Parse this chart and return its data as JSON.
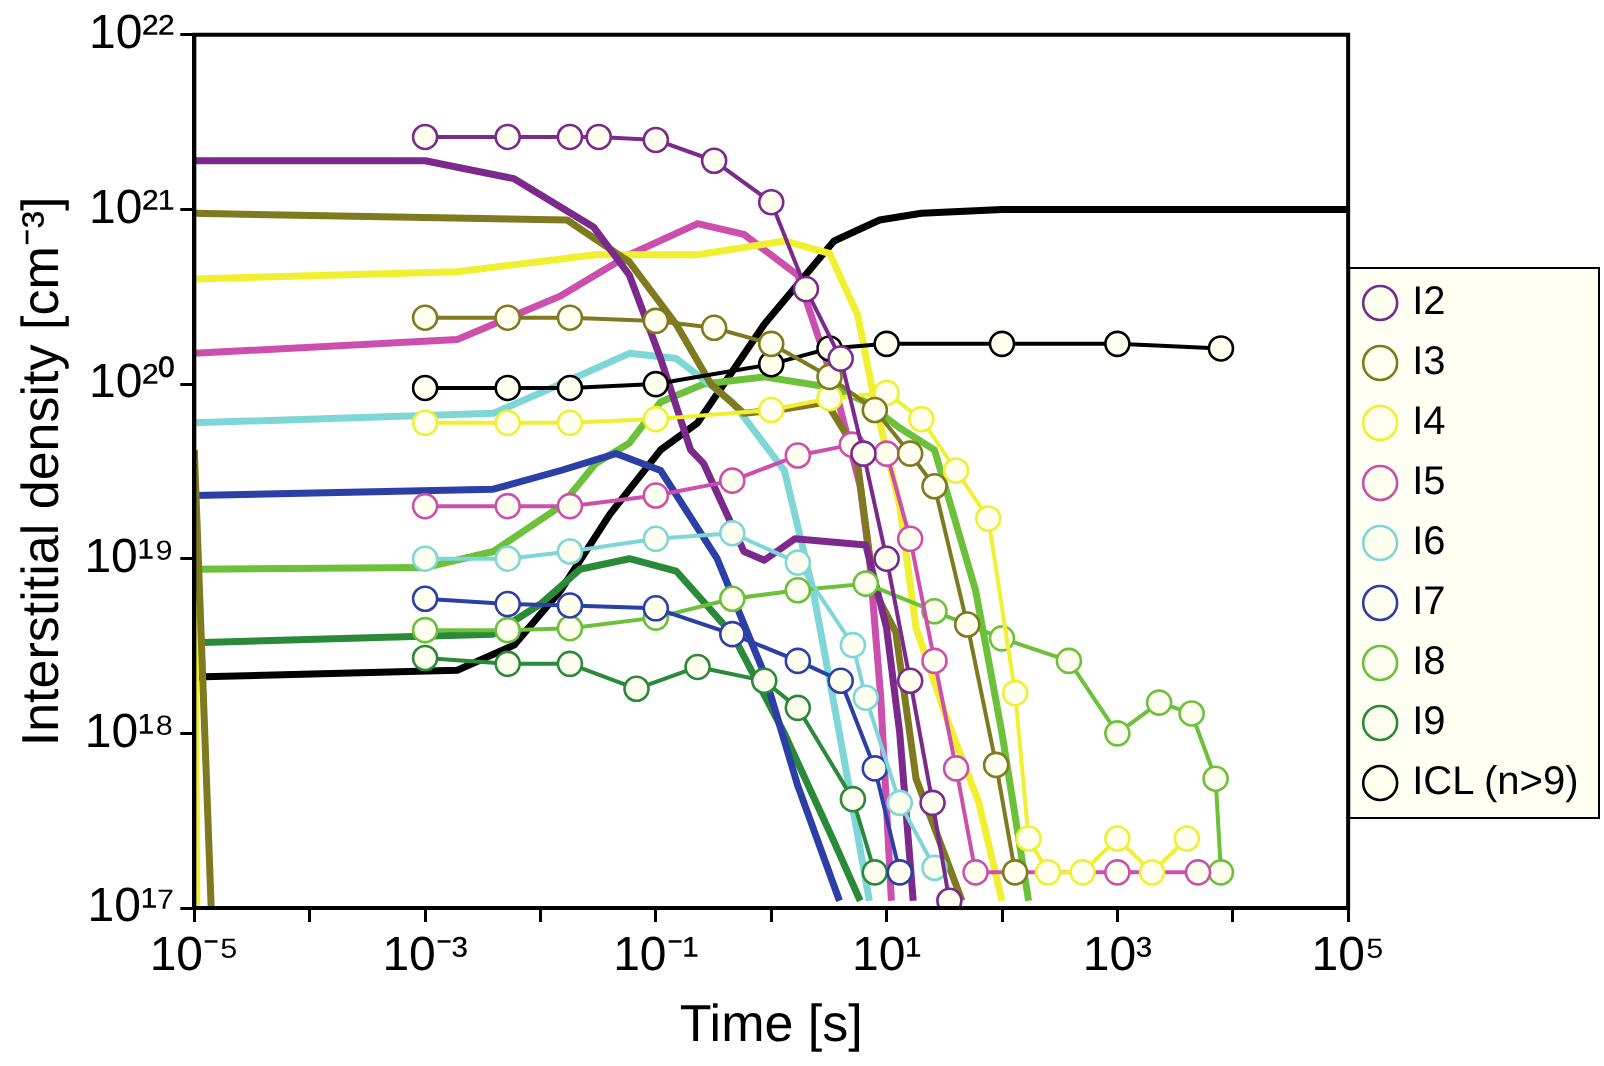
{
  "chart_data": {
    "type": "line",
    "xlabel": "Time [s]",
    "ylabel": "Interstitial density [cm⁻³]",
    "log": "xy",
    "grid": false,
    "legend": "right",
    "xlim": [
      1e-05,
      100000.0
    ],
    "ylim": [
      1e+17,
      1e+22
    ],
    "xticks": [
      {
        "value": 1e-05,
        "label": "10⁻⁵"
      },
      {
        "value": 0.0001,
        "label": null
      },
      {
        "value": 0.001,
        "label": "10⁻³"
      },
      {
        "value": 0.01,
        "label": null
      },
      {
        "value": 0.1,
        "label": "10⁻¹"
      },
      {
        "value": 1,
        "label": null
      },
      {
        "value": 10,
        "label": "10¹"
      },
      {
        "value": 100,
        "label": null
      },
      {
        "value": 1000,
        "label": "10³"
      },
      {
        "value": 10000,
        "label": null
      },
      {
        "value": 100000,
        "label": "10⁵"
      }
    ],
    "yticks": [
      {
        "value": 1e+17,
        "label": "10¹⁷"
      },
      {
        "value": 1e+18,
        "label": "10¹⁸"
      },
      {
        "value": 1e+19,
        "label": "10¹⁹"
      },
      {
        "value": 1e+20,
        "label": "10²⁰"
      },
      {
        "value": 1e+21,
        "label": "10²¹"
      },
      {
        "value": 1e+22,
        "label": "10²²"
      }
    ],
    "series": [
      {
        "name": "I2",
        "color": "#7b2a8c",
        "marker": "circle",
        "x": [
          0.001,
          0.0052,
          0.018,
          0.032,
          0.1,
          0.32,
          1,
          2,
          4,
          6.3,
          10,
          16,
          25,
          35
        ],
        "values": [
          2.6e+21,
          2.6e+21,
          2.6e+21,
          2.6e+21,
          2.5e+21,
          1.9e+21,
          1.1e+21,
          3.5e+20,
          1.4e+20,
          4e+19,
          1e+19,
          2e+18,
          4e+17,
          1.1e+17
        ]
      },
      {
        "name": "I3",
        "color": "#7f7a1f",
        "marker": "circle",
        "x": [
          0.001,
          0.0052,
          0.018,
          0.1,
          0.32,
          1,
          3.2,
          7.9,
          16,
          26,
          50,
          89,
          130
        ],
        "values": [
          2.4e+20,
          2.4e+20,
          2.4e+20,
          2.3e+20,
          2.1e+20,
          1.7e+20,
          1.1e+20,
          7.1e+19,
          4e+19,
          2.6e+19,
          4.2e+18,
          6.6e+17,
          1.6e+17
        ]
      },
      {
        "name": "I4",
        "color": "#f0f030",
        "marker": "circle",
        "x": [
          0.001,
          0.0052,
          0.018,
          0.1,
          1,
          3.2,
          10,
          20,
          40,
          76,
          130,
          170,
          250,
          500,
          1000,
          2000,
          4000
        ],
        "values": [
          6e+19,
          6e+19,
          6e+19,
          6.3e+19,
          7.1e+19,
          8.3e+19,
          8.9e+19,
          6.3e+19,
          3.2e+19,
          1.7e+19,
          1.7e+18,
          2.5e+17,
          1.6e+17,
          1.6e+17,
          2.5e+17,
          1.6e+17,
          2.5e+17
        ]
      },
      {
        "name": "I5",
        "color": "#cc4fae",
        "marker": "circle",
        "x": [
          0.001,
          0.0052,
          0.018,
          0.1,
          0.46,
          1.7,
          5,
          10,
          16,
          26,
          40,
          59,
          1000,
          5000
        ],
        "values": [
          2e+19,
          2e+19,
          2e+19,
          2.3e+19,
          2.8e+19,
          3.9e+19,
          4.5e+19,
          4e+19,
          1.3e+19,
          2.6e+18,
          6.3e+17,
          1.6e+17,
          1.6e+17,
          1.6e+17
        ]
      },
      {
        "name": "I6",
        "color": "#7fd6d6",
        "marker": "circle",
        "x": [
          0.001,
          0.0052,
          0.018,
          0.1,
          0.46,
          1.7,
          5.1,
          6.6,
          13,
          26
        ],
        "values": [
          1e+19,
          1e+19,
          1.1e+19,
          1.3e+19,
          1.4e+19,
          9.5e+18,
          3.2e+18,
          1.6e+18,
          4e+17,
          1.7e+17
        ]
      },
      {
        "name": "I7",
        "color": "#2b3fa6",
        "marker": "circle",
        "x": [
          0.001,
          0.0052,
          0.018,
          0.1,
          0.46,
          1.7,
          4,
          7.9,
          13
        ],
        "values": [
          5.9e+18,
          5.5e+18,
          5.4e+18,
          5.2e+18,
          3.7e+18,
          2.6e+18,
          2e+18,
          6.3e+17,
          1.6e+17
        ]
      },
      {
        "name": "I8",
        "color": "#6cc03a",
        "marker": "circle",
        "x": [
          0.001,
          0.0052,
          0.018,
          0.1,
          0.46,
          1.7,
          6.6,
          26,
          100,
          380,
          1000,
          2300,
          4400,
          7100,
          7900
        ],
        "values": [
          3.9e+18,
          3.9e+18,
          4e+18,
          4.6e+18,
          5.9e+18,
          6.6e+18,
          7.2e+18,
          5e+18,
          3.5e+18,
          2.6e+18,
          1e+18,
          1.5e+18,
          1.3e+18,
          5.5e+17,
          1.6e+17
        ]
      },
      {
        "name": "I9",
        "color": "#2a8a3a",
        "marker": "circle",
        "x": [
          0.001,
          0.0052,
          0.018,
          0.068,
          0.23,
          0.87,
          1.7,
          5.1,
          7.9
        ],
        "values": [
          2.7e+18,
          2.5e+18,
          2.5e+18,
          1.8e+18,
          2.4e+18,
          2e+18,
          1.4e+18,
          4.2e+17,
          1.6e+17
        ]
      },
      {
        "name": "ICL (n>9)",
        "color": "#000000",
        "marker": "circle",
        "x": [
          0.001,
          0.0052,
          0.018,
          0.1,
          1,
          3.2,
          10,
          100,
          1000,
          7900
        ],
        "values": [
          9.5e+19,
          9.5e+19,
          9.5e+19,
          1e+20,
          1.3e+20,
          1.6e+20,
          1.7e+20,
          1.7e+20,
          1.7e+20,
          1.6e+20
        ]
      },
      {
        "color": "#7b2a8c",
        "marker": "none",
        "x": [
          1e-05,
          0.001,
          0.0059,
          0.029,
          0.059,
          0.11,
          0.2,
          0.26,
          0.58,
          0.87,
          1.6,
          6.6,
          10,
          13,
          17
        ],
        "values": [
          1.9e+21,
          1.9e+21,
          1.5e+21,
          7.9e+20,
          4.2e+20,
          1.4e+20,
          4.2e+19,
          3.5e+19,
          1.1e+19,
          9.8e+18,
          1.3e+19,
          1.2e+19,
          4e+18,
          1e+18,
          1.1e+17
        ]
      },
      {
        "color": "#7f7a1f",
        "marker": "none",
        "x": [
          1e-05,
          0.017,
          0.059,
          0.15,
          0.3,
          0.58,
          1.3,
          3.0,
          5.4,
          7.8,
          12,
          18,
          45
        ],
        "values": [
          9.5e+20,
          8.7e+20,
          5e+20,
          2.2e+20,
          1e+20,
          6.8e+19,
          7.2e+19,
          7.9e+19,
          4.2e+19,
          6.6e+18,
          3.8e+18,
          5.5e+17,
          1.1e+17
        ]
      },
      {
        "color": "#7f7a1f",
        "marker": "none",
        "x": [
          1e-05,
          1.4e-05
        ],
        "values": [
          4.2e+19,
          1e+17
        ]
      },
      {
        "color": "#f0f030",
        "marker": "none",
        "x": [
          1e-05,
          1.05e-05
        ],
        "values": [
          4.2e+19,
          1e+17
        ]
      },
      {
        "color": "#f0f030",
        "marker": "none",
        "x": [
          1e-05,
          0.0019,
          0.03,
          0.23,
          1.3,
          3.2,
          5.6,
          7.9,
          13,
          18,
          32,
          63,
          100
        ],
        "values": [
          4e+20,
          4.4e+20,
          5.5e+20,
          5.5e+20,
          6.6e+20,
          5.6e+20,
          2.5e+20,
          7.9e+19,
          2e+19,
          4e+18,
          1.3e+18,
          4e+17,
          1.1e+17
        ]
      },
      {
        "color": "#cc4fae",
        "marker": "none",
        "x": [
          1e-05,
          0.0019,
          0.015,
          0.059,
          0.23,
          0.58,
          1.7,
          3.5,
          5.9,
          7.1,
          8.9,
          11
        ],
        "values": [
          1.5e+20,
          1.8e+20,
          3.2e+20,
          5.5e+20,
          8.3e+20,
          7.2e+20,
          4.2e+20,
          1e+20,
          2.6e+19,
          1e+19,
          1.6e+18,
          1.1e+17
        ]
      },
      {
        "color": "#7fd6d6",
        "marker": "none",
        "x": [
          1e-05,
          0.0039,
          0.015,
          0.059,
          0.15,
          0.46,
          1.3,
          2.3,
          3.9,
          7.1
        ],
        "values": [
          6e+19,
          6.8e+19,
          1e+20,
          1.5e+20,
          1.4e+20,
          7.9e+19,
          3.2e+19,
          6.6e+18,
          1e+18,
          1.1e+17
        ]
      },
      {
        "color": "#2b3fa6",
        "marker": "none",
        "x": [
          1e-05,
          0.0039,
          0.015,
          0.045,
          0.11,
          0.34,
          0.87,
          1.7,
          3.9
        ],
        "values": [
          2.3e+19,
          2.5e+19,
          3.2e+19,
          4e+19,
          3.2e+19,
          1e+19,
          2.2e+18,
          5e+17,
          1.1e+17
        ]
      },
      {
        "color": "#6cc03a",
        "marker": "none",
        "x": [
          1e-05,
          0.001,
          0.0039,
          0.015,
          0.03,
          0.059,
          0.11,
          0.26,
          0.87,
          3.5,
          6.6,
          13,
          26,
          59,
          100,
          170
        ],
        "values": [
          8.7e+18,
          8.9e+18,
          1.1e+19,
          2e+19,
          3.5e+19,
          4.6e+19,
          7.9e+19,
          1e+20,
          1.1e+20,
          9.5e+19,
          7.9e+19,
          5.6e+19,
          4.2e+19,
          6.6e+18,
          1e+18,
          1.1e+17
        ]
      },
      {
        "color": "#2a8a3a",
        "marker": "none",
        "x": [
          1e-05,
          0.0039,
          0.01,
          0.022,
          0.059,
          0.15,
          0.46,
          1.3,
          3.5,
          5.9
        ],
        "values": [
          3.3e+18,
          3.7e+18,
          5.5e+18,
          8.7e+18,
          1e+19,
          8.5e+18,
          3.7e+18,
          1e+18,
          2.4e+17,
          1.1e+17
        ]
      },
      {
        "color": "#000000",
        "marker": "none",
        "x": [
          1e-05,
          0.0019,
          0.0059,
          0.015,
          0.04,
          0.11,
          0.23,
          0.87,
          3.5,
          8.7,
          20,
          100,
          100000.0
        ],
        "values": [
          2.1e+18,
          2.3e+18,
          3.2e+18,
          6.6e+18,
          1.8e+19,
          4.2e+19,
          6e+19,
          2.2e+20,
          6.6e+20,
          8.7e+20,
          9.5e+20,
          1e+21,
          1e+21
        ]
      }
    ]
  }
}
